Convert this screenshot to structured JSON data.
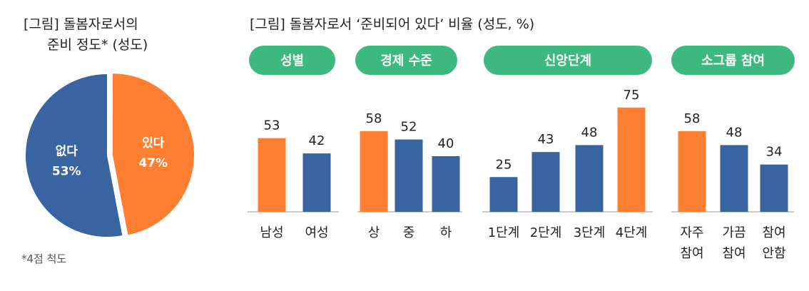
{
  "colors": {
    "orange": "#FF7F32",
    "blue": "#3864A2",
    "green": "#3DB87F",
    "axis": "#cccccc"
  },
  "pie": {
    "title_line1": "[그림] 돌봄자로서의",
    "title_line2": "준비 정도* (성도)",
    "note": "*4점 척도"
  },
  "bars": {
    "title": "[그림] 돌봄자로서 ‘준비되어 있다’ 비율 (성도, %)"
  },
  "chart_data": [
    {
      "type": "pie",
      "slices": [
        {
          "label": "있다",
          "value": 47,
          "value_label": "47%",
          "color": "#FF7F32"
        },
        {
          "label": "없다",
          "value": 53,
          "value_label": "53%",
          "color": "#3864A2"
        }
      ]
    },
    {
      "type": "bar",
      "unit": "%",
      "groups": [
        {
          "name": "성별",
          "categories": [
            [
              "남성"
            ],
            [
              "여성"
            ]
          ],
          "values": [
            53,
            42
          ],
          "colors": [
            "#FF7F32",
            "#3864A2"
          ]
        },
        {
          "name": "경제 수준",
          "categories": [
            [
              "상"
            ],
            [
              "중"
            ],
            [
              "하"
            ]
          ],
          "values": [
            58,
            52,
            40
          ],
          "colors": [
            "#FF7F32",
            "#3864A2",
            "#3864A2"
          ]
        },
        {
          "name": "신앙단계",
          "categories": [
            [
              "1단계"
            ],
            [
              "2단계"
            ],
            [
              "3단계"
            ],
            [
              "4단계"
            ]
          ],
          "values": [
            25,
            43,
            48,
            75
          ],
          "colors": [
            "#3864A2",
            "#3864A2",
            "#3864A2",
            "#FF7F32"
          ]
        },
        {
          "name": "소그룹 참여",
          "categories": [
            [
              "자주",
              "참여"
            ],
            [
              "가끔",
              "참여"
            ],
            [
              "참여",
              "안함"
            ]
          ],
          "values": [
            58,
            48,
            34
          ],
          "colors": [
            "#FF7F32",
            "#3864A2",
            "#3864A2"
          ]
        }
      ]
    }
  ]
}
